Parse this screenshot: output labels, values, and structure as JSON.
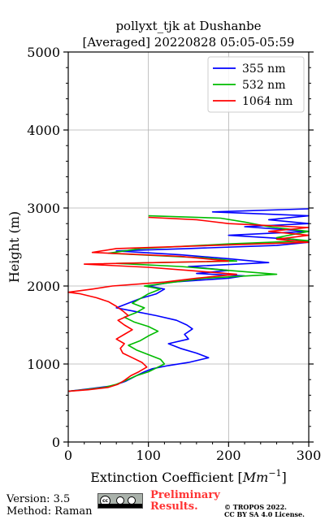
{
  "chart_data": {
    "type": "line",
    "title": "pollyxt_tjk at Dushanbe",
    "subtitle": "[Averaged] 20220828 05:05-05:59",
    "xlabel": "Extinction Coefficient [Mm^-1]",
    "ylabel": "Height (m)",
    "xlim": [
      0,
      300
    ],
    "ylim": [
      0,
      5000
    ],
    "xticks": [
      0,
      100,
      200,
      300
    ],
    "yticks": [
      0,
      1000,
      2000,
      3000,
      4000,
      5000
    ],
    "grid": true,
    "legend_position": "top-right",
    "series": [
      {
        "name": "355 nm",
        "color": "#0000ff",
        "points": [
          [
            0,
            650
          ],
          [
            25,
            680
          ],
          [
            55,
            720
          ],
          [
            72,
            780
          ],
          [
            85,
            850
          ],
          [
            95,
            900
          ],
          [
            105,
            940
          ],
          [
            125,
            980
          ],
          [
            150,
            1020
          ],
          [
            175,
            1080
          ],
          [
            160,
            1140
          ],
          [
            140,
            1200
          ],
          [
            125,
            1260
          ],
          [
            150,
            1320
          ],
          [
            145,
            1380
          ],
          [
            155,
            1450
          ],
          [
            148,
            1500
          ],
          [
            135,
            1560
          ],
          [
            110,
            1620
          ],
          [
            80,
            1680
          ],
          [
            60,
            1720
          ],
          [
            75,
            1780
          ],
          [
            90,
            1840
          ],
          [
            110,
            1900
          ],
          [
            120,
            1960
          ],
          [
            100,
            2000
          ],
          [
            130,
            2050
          ],
          [
            200,
            2100
          ],
          [
            220,
            2130
          ],
          [
            160,
            2160
          ],
          [
            200,
            2200
          ],
          [
            150,
            2250
          ],
          [
            250,
            2300
          ],
          [
            200,
            2350
          ],
          [
            140,
            2400
          ],
          [
            60,
            2450
          ],
          [
            150,
            2480
          ],
          [
            260,
            2520
          ],
          [
            300,
            2560
          ],
          [
            280,
            2600
          ],
          [
            200,
            2650
          ],
          [
            300,
            2700
          ],
          [
            220,
            2760
          ],
          [
            300,
            2800
          ],
          [
            250,
            2850
          ],
          [
            300,
            2900
          ],
          [
            180,
            2950
          ],
          [
            300,
            2990
          ]
        ]
      },
      {
        "name": "532 nm",
        "color": "#00bb00",
        "points": [
          [
            0,
            650
          ],
          [
            20,
            670
          ],
          [
            45,
            700
          ],
          [
            60,
            740
          ],
          [
            72,
            790
          ],
          [
            85,
            850
          ],
          [
            100,
            900
          ],
          [
            110,
            950
          ],
          [
            120,
            1000
          ],
          [
            115,
            1060
          ],
          [
            100,
            1120
          ],
          [
            85,
            1180
          ],
          [
            75,
            1240
          ],
          [
            90,
            1300
          ],
          [
            100,
            1360
          ],
          [
            112,
            1420
          ],
          [
            100,
            1480
          ],
          [
            82,
            1540
          ],
          [
            70,
            1600
          ],
          [
            85,
            1660
          ],
          [
            95,
            1720
          ],
          [
            80,
            1780
          ],
          [
            90,
            1840
          ],
          [
            100,
            1900
          ],
          [
            115,
            1960
          ],
          [
            95,
            2000
          ],
          [
            140,
            2060
          ],
          [
            170,
            2100
          ],
          [
            260,
            2150
          ],
          [
            200,
            2200
          ],
          [
            140,
            2250
          ],
          [
            60,
            2290
          ],
          [
            210,
            2320
          ],
          [
            170,
            2360
          ],
          [
            50,
            2420
          ],
          [
            90,
            2480
          ],
          [
            200,
            2540
          ],
          [
            300,
            2580
          ],
          [
            260,
            2620
          ],
          [
            300,
            2700
          ],
          [
            250,
            2760
          ],
          [
            220,
            2820
          ],
          [
            190,
            2870
          ],
          [
            100,
            2900
          ]
        ]
      },
      {
        "name": "1064 nm",
        "color": "#ff0000",
        "points": [
          [
            0,
            650
          ],
          [
            25,
            670
          ],
          [
            50,
            700
          ],
          [
            62,
            740
          ],
          [
            70,
            790
          ],
          [
            78,
            850
          ],
          [
            88,
            900
          ],
          [
            98,
            960
          ],
          [
            92,
            1020
          ],
          [
            80,
            1080
          ],
          [
            68,
            1140
          ],
          [
            65,
            1200
          ],
          [
            70,
            1260
          ],
          [
            60,
            1320
          ],
          [
            70,
            1380
          ],
          [
            80,
            1440
          ],
          [
            70,
            1500
          ],
          [
            62,
            1560
          ],
          [
            75,
            1620
          ],
          [
            68,
            1680
          ],
          [
            60,
            1740
          ],
          [
            50,
            1800
          ],
          [
            35,
            1850
          ],
          [
            15,
            1900
          ],
          [
            0,
            1920
          ],
          [
            30,
            1960
          ],
          [
            55,
            2000
          ],
          [
            120,
            2050
          ],
          [
            160,
            2100
          ],
          [
            210,
            2150
          ],
          [
            150,
            2200
          ],
          [
            100,
            2240
          ],
          [
            20,
            2280
          ],
          [
            200,
            2320
          ],
          [
            140,
            2380
          ],
          [
            30,
            2430
          ],
          [
            60,
            2480
          ],
          [
            180,
            2520
          ],
          [
            300,
            2560
          ],
          [
            260,
            2600
          ],
          [
            300,
            2650
          ],
          [
            250,
            2700
          ],
          [
            300,
            2750
          ],
          [
            200,
            2800
          ],
          [
            160,
            2850
          ],
          [
            100,
            2880
          ]
        ]
      }
    ]
  },
  "footer": {
    "version": "Version: 3.5",
    "method": "Method: Raman",
    "cc_label": "cc",
    "preliminary_line1": "Preliminary",
    "preliminary_line2": "Results.",
    "copyright_line1": "© TROPOS 2022.",
    "copyright_line2": "CC BY SA 4.0 License."
  }
}
